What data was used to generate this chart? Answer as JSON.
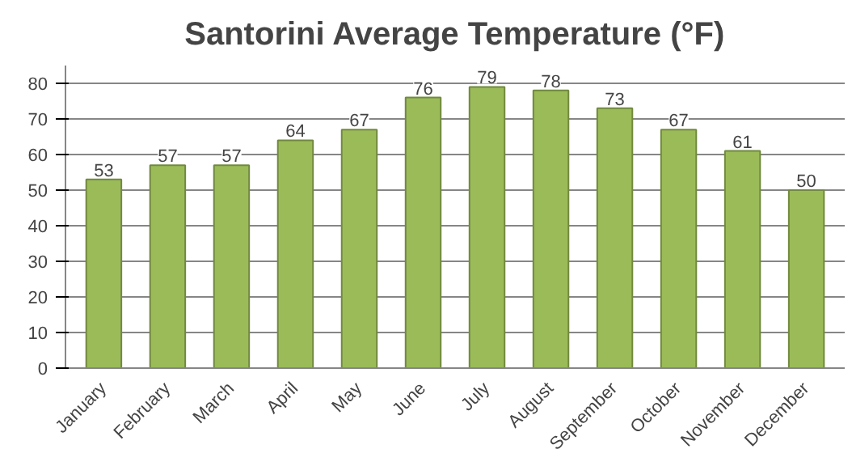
{
  "chart_data": {
    "type": "bar",
    "title": "Santorini Average Temperature (°F)",
    "categories": [
      "January",
      "February",
      "March",
      "April",
      "May",
      "June",
      "July",
      "August",
      "September",
      "October",
      "November",
      "December"
    ],
    "values": [
      53,
      57,
      57,
      64,
      67,
      76,
      79,
      78,
      73,
      67,
      61,
      50
    ],
    "color": "#9bbb59",
    "ylim": [
      0,
      85
    ],
    "yticks": [
      0,
      10,
      20,
      30,
      40,
      50,
      60,
      70,
      80
    ],
    "grid": "y",
    "data_labels": true
  }
}
